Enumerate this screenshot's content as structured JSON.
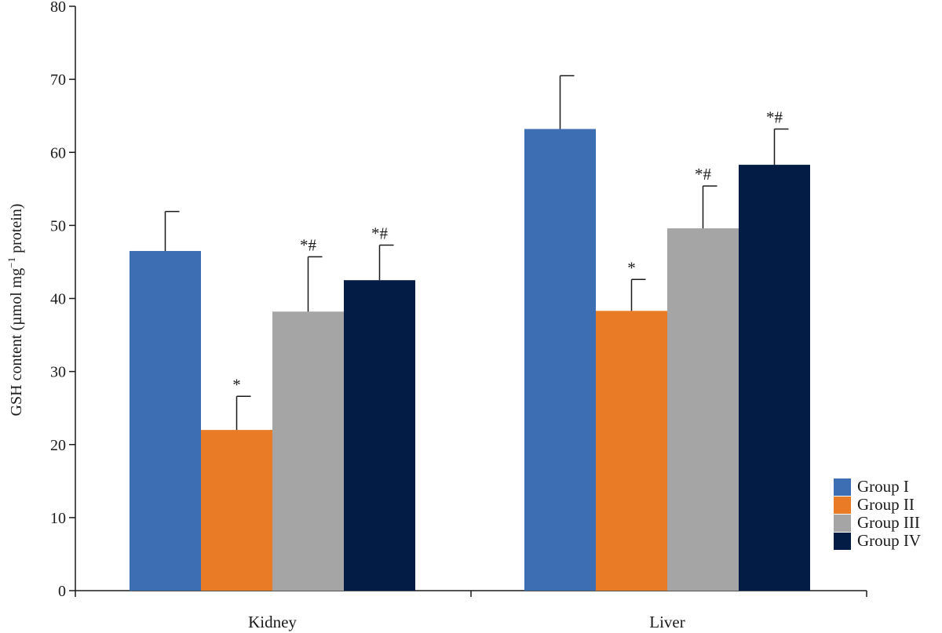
{
  "chart_data": {
    "type": "bar",
    "title": "",
    "xlabel": "",
    "ylabel": "GSH content (µmol mg",
    "ylabel_sup": "−1",
    "ylabel_suffix": " protein)",
    "ylim": [
      0,
      80
    ],
    "yticks": [
      0,
      10,
      20,
      30,
      40,
      50,
      60,
      70,
      80
    ],
    "categories": [
      "Kidney",
      "Liver"
    ],
    "series": [
      {
        "name": "Group I",
        "color": "#3d6db3",
        "values": [
          46.5,
          63.2
        ],
        "errors": [
          5.4,
          7.3
        ],
        "significance": [
          "",
          ""
        ]
      },
      {
        "name": "Group II",
        "color": "#e97a26",
        "values": [
          22.0,
          38.3
        ],
        "errors": [
          4.6,
          4.3
        ],
        "significance": [
          "*",
          "*"
        ]
      },
      {
        "name": "Group III",
        "color": "#a5a5a5",
        "values": [
          38.2,
          49.6
        ],
        "errors": [
          7.5,
          5.8
        ],
        "significance": [
          "*#",
          "*#"
        ]
      },
      {
        "name": "Group IV",
        "color": "#031c45",
        "values": [
          42.5,
          58.3
        ],
        "errors": [
          4.8,
          4.9
        ],
        "significance": [
          "*#",
          "*#"
        ]
      }
    ],
    "legend_position": "bottom-right",
    "grid": false
  }
}
